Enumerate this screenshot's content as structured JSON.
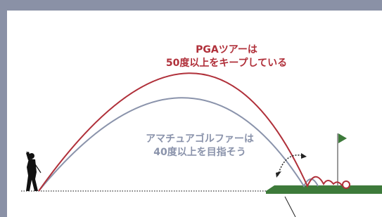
{
  "pga": {
    "line1": "PGAツアーは",
    "line2": "50度以上をキープしている"
  },
  "amateur": {
    "line1": "アマチュアゴルファーは",
    "line2": "40度以上を目指そう"
  }
}
